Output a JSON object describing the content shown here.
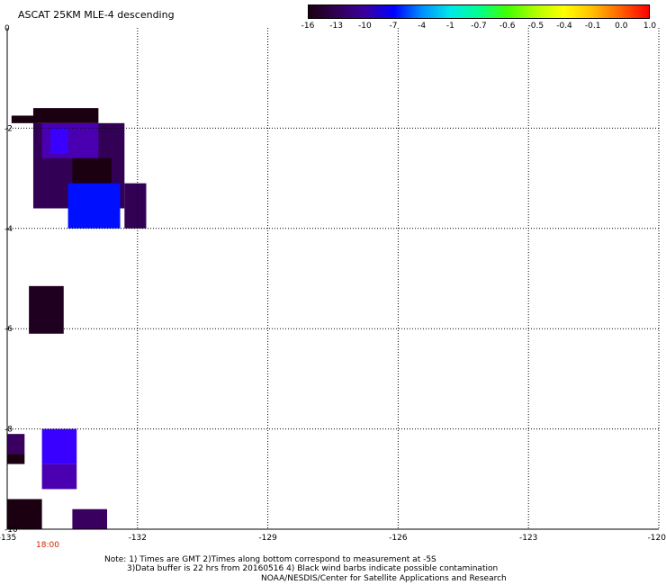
{
  "title": "ASCAT 25KM MLE-4 descending",
  "colorbar": {
    "colors": [
      "#1a0010",
      "#320055",
      "#3a00a0",
      "#0000ff",
      "#0090ff",
      "#00e8e8",
      "#00ff90",
      "#40ff00",
      "#b0ff00",
      "#ffff00",
      "#ffc000",
      "#ff6000",
      "#ff0000"
    ],
    "labels": [
      "-16",
      "-13",
      "-10",
      "-7",
      "-4",
      "-1",
      "-0.7",
      "-0.6",
      "-0.5",
      "-0.4",
      "-0.1",
      "0.0",
      "1.0"
    ]
  },
  "axes": {
    "x_ticks": [
      "-135",
      "-132",
      "-129",
      "-126",
      "-123",
      "-120"
    ],
    "y_ticks": [
      "0",
      "-2",
      "-4",
      "-6",
      "-8",
      "-10"
    ]
  },
  "map_data": {
    "lon_range": [
      -135,
      -120
    ],
    "lat_range": [
      -10,
      0
    ],
    "cells": [
      {
        "lon": [
          -134.9,
          -134.3
        ],
        "lat": [
          -1.75,
          -1.9
        ],
        "color": "#1a0010"
      },
      {
        "lon": [
          -134.4,
          -132.9
        ],
        "lat": [
          -1.6,
          -1.9
        ],
        "color": "#1a0010"
      },
      {
        "lon": [
          -134.4,
          -132.3
        ],
        "lat": [
          -1.9,
          -3.6
        ],
        "color": "#320055"
      },
      {
        "lon": [
          -134.2,
          -132.9
        ],
        "lat": [
          -1.9,
          -2.6
        ],
        "color": "#4a00b0"
      },
      {
        "lon": [
          -134.0,
          -133.6
        ],
        "lat": [
          -2.0,
          -2.5
        ],
        "color": "#3a00ff"
      },
      {
        "lon": [
          -133.5,
          -132.6
        ],
        "lat": [
          -2.6,
          -3.1
        ],
        "color": "#1a0010"
      },
      {
        "lon": [
          -133.6,
          -132.4
        ],
        "lat": [
          -3.1,
          -4.0
        ],
        "color": "#0010ff"
      },
      {
        "lon": [
          -132.3,
          -131.8
        ],
        "lat": [
          -3.1,
          -4.0
        ],
        "color": "#320055"
      },
      {
        "lon": [
          -134.5,
          -133.7
        ],
        "lat": [
          -5.15,
          -6.1
        ],
        "color": "#200020"
      },
      {
        "lon": [
          -134.2,
          -133.4
        ],
        "lat": [
          -8.0,
          -8.7
        ],
        "color": "#3a00ff"
      },
      {
        "lon": [
          -134.2,
          -133.4
        ],
        "lat": [
          -8.7,
          -9.2
        ],
        "color": "#4a00b0"
      },
      {
        "lon": [
          -135.0,
          -134.6
        ],
        "lat": [
          -8.1,
          -8.5
        ],
        "color": "#3a0060"
      },
      {
        "lon": [
          -135.0,
          -134.6
        ],
        "lat": [
          -8.5,
          -8.7
        ],
        "color": "#1a0010"
      },
      {
        "lon": [
          -135.0,
          -134.2
        ],
        "lat": [
          -9.4,
          -10.0
        ],
        "color": "#1a0010"
      },
      {
        "lon": [
          -133.5,
          -132.7
        ],
        "lat": [
          -9.6,
          -10.0
        ],
        "color": "#3a0060"
      }
    ]
  },
  "time_label": "18:00",
  "notes": [
    "Note: 1) Times are GMT 2)Times along bottom correspond to measurement at -5S",
    "3)Data buffer is 22 hrs from 20160516 4) Black wind barbs indicate possible contamination",
    "NOAA/NESDIS/Center for Satellite Applications and Research"
  ]
}
